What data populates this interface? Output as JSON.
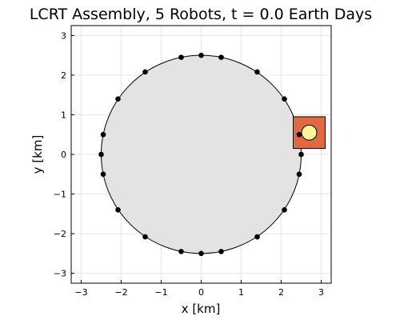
{
  "chart_data": {
    "type": "scatter",
    "title": "LCRT Assembly, 5 Robots, t = 0.0 Earth Days",
    "xlabel": "x [km]",
    "ylabel": "y [km]",
    "xlim": [
      -3.25,
      3.25
    ],
    "ylim": [
      -3.25,
      3.25
    ],
    "x_ticks": [
      -3,
      -2,
      -1,
      0,
      1,
      2,
      3
    ],
    "y_ticks": [
      -3,
      -2,
      -1,
      0,
      1,
      2,
      3
    ],
    "x_tick_labels": [
      "−3",
      "−2",
      "−1",
      "0",
      "1",
      "2",
      "3"
    ],
    "y_tick_labels": [
      "−3",
      "−2",
      "−1",
      "0",
      "1",
      "2",
      "3"
    ],
    "grid": true,
    "aspect": "equal",
    "crater": {
      "center": [
        0,
        0
      ],
      "radius": 2.5,
      "fill": "#e3e3e3",
      "stroke": "#000000"
    },
    "rim_points": [
      {
        "x": 0.0,
        "y": 2.5
      },
      {
        "x": 0.5,
        "y": 2.45
      },
      {
        "x": 1.4,
        "y": 2.08
      },
      {
        "x": 2.08,
        "y": 1.4
      },
      {
        "x": 2.45,
        "y": 0.5
      },
      {
        "x": 2.5,
        "y": 0.0
      },
      {
        "x": 2.45,
        "y": -0.5
      },
      {
        "x": 2.08,
        "y": -1.4
      },
      {
        "x": 1.4,
        "y": -2.08
      },
      {
        "x": 0.5,
        "y": -2.45
      },
      {
        "x": 0.0,
        "y": -2.5
      },
      {
        "x": -0.5,
        "y": -2.45
      },
      {
        "x": -1.4,
        "y": -2.08
      },
      {
        "x": -2.08,
        "y": -1.4
      },
      {
        "x": -2.45,
        "y": -0.5
      },
      {
        "x": -2.5,
        "y": 0.0
      },
      {
        "x": -2.45,
        "y": 0.5
      },
      {
        "x": -2.08,
        "y": 1.4
      },
      {
        "x": -1.4,
        "y": 2.08
      },
      {
        "x": -0.5,
        "y": 2.45
      }
    ],
    "depot": {
      "x_range": [
        2.3,
        3.1
      ],
      "y_range": [
        0.15,
        0.95
      ],
      "fill": "#e0693f",
      "stroke": "#000000"
    },
    "robot": {
      "x": 2.7,
      "y": 0.55,
      "radius": 0.19,
      "fill": "#fff59a",
      "stroke": "#000000"
    },
    "marker_color": "#000000"
  }
}
